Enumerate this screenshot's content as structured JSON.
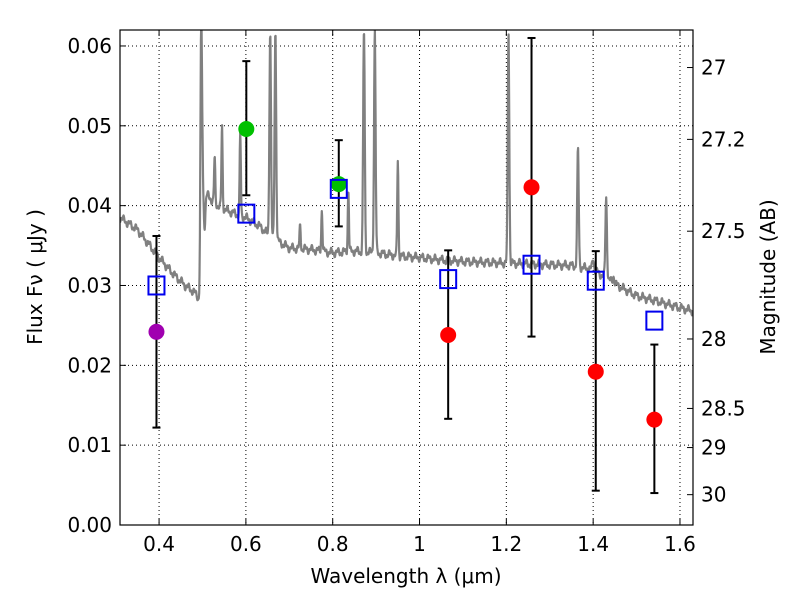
{
  "chart_data": {
    "type": "scatter",
    "xlabel": "Wavelength  λ (μm)",
    "ylabel": "Flux  Fν  ( μJy )",
    "y2label": "Magnitude (AB)",
    "xlim": [
      0.31,
      1.63
    ],
    "ylim": [
      0.0,
      0.062
    ],
    "grid": true,
    "x_ticks": [
      0.4,
      0.6,
      0.8,
      1.0,
      1.2,
      1.4,
      1.6
    ],
    "x_tick_labels": [
      "0.4",
      "0.6",
      "0.8",
      "1",
      "1.2",
      "1.4",
      "1.6"
    ],
    "y_ticks": [
      0.0,
      0.01,
      0.02,
      0.03,
      0.04,
      0.05,
      0.06
    ],
    "y_tick_labels": [
      "0.00",
      "0.01",
      "0.02",
      "0.03",
      "0.04",
      "0.05",
      "0.06"
    ],
    "y2_ticks": [
      {
        "label": "27",
        "flux": 0.0573
      },
      {
        "label": "27.2",
        "flux": 0.0483
      },
      {
        "label": "27.5",
        "flux": 0.0368
      },
      {
        "label": "28",
        "flux": 0.0233
      },
      {
        "label": "28.5",
        "flux": 0.0146
      },
      {
        "label": "29",
        "flux": 0.0097
      },
      {
        "label": "30",
        "flux": 0.0038
      }
    ],
    "colors": {
      "model": "#808080",
      "violet": "#a000b0",
      "green": "#00c000",
      "red": "#ff0000",
      "model_box": "#0000ee",
      "error_bar": "#000000"
    },
    "measurements": [
      {
        "x": 0.394,
        "y": 0.0242,
        "yerr_low": 0.0122,
        "yerr_high": 0.0362,
        "color": "violet"
      },
      {
        "x": 0.601,
        "y": 0.0496,
        "yerr_low": 0.0413,
        "yerr_high": 0.0581,
        "color": "green"
      },
      {
        "x": 0.814,
        "y": 0.0427,
        "yerr_low": 0.0374,
        "yerr_high": 0.0482,
        "color": "green"
      },
      {
        "x": 1.066,
        "y": 0.0238,
        "yerr_low": 0.0133,
        "yerr_high": 0.0344,
        "color": "red"
      },
      {
        "x": 1.258,
        "y": 0.0423,
        "yerr_low": 0.0236,
        "yerr_high": 0.061,
        "color": "red"
      },
      {
        "x": 1.406,
        "y": 0.0192,
        "yerr_low": 0.0043,
        "yerr_high": 0.0343,
        "color": "red"
      },
      {
        "x": 1.541,
        "y": 0.0132,
        "yerr_low": 0.004,
        "yerr_high": 0.0226,
        "color": "red"
      }
    ],
    "model_photometry": [
      {
        "x": 0.394,
        "y": 0.03
      },
      {
        "x": 0.601,
        "y": 0.039
      },
      {
        "x": 0.814,
        "y": 0.0421
      },
      {
        "x": 1.066,
        "y": 0.0308
      },
      {
        "x": 1.258,
        "y": 0.0326
      },
      {
        "x": 1.406,
        "y": 0.0306
      },
      {
        "x": 1.541,
        "y": 0.0256
      }
    ],
    "model_spectrum": {
      "continuum": [
        [
          0.31,
          0.0385
        ],
        [
          0.35,
          0.037
        ],
        [
          0.4,
          0.0335
        ],
        [
          0.43,
          0.0316
        ],
        [
          0.46,
          0.03
        ],
        [
          0.48,
          0.0292
        ],
        [
          0.488,
          0.0287
        ],
        [
          0.493,
          0.028
        ],
        [
          0.497,
          0.0283
        ],
        [
          0.5,
          0.042
        ],
        [
          0.53,
          0.0402
        ],
        [
          0.56,
          0.0393
        ],
        [
          0.6,
          0.0385
        ],
        [
          0.63,
          0.0375
        ],
        [
          0.66,
          0.036
        ],
        [
          0.7,
          0.0347
        ],
        [
          0.75,
          0.0345
        ],
        [
          0.8,
          0.0341
        ],
        [
          0.85,
          0.0343
        ],
        [
          0.9,
          0.0341
        ],
        [
          0.95,
          0.0337
        ],
        [
          1.0,
          0.0335
        ],
        [
          1.05,
          0.0332
        ],
        [
          1.1,
          0.033
        ],
        [
          1.15,
          0.0329
        ],
        [
          1.2,
          0.0328
        ],
        [
          1.25,
          0.0327
        ],
        [
          1.3,
          0.0326
        ],
        [
          1.35,
          0.0325
        ],
        [
          1.4,
          0.032
        ],
        [
          1.45,
          0.0302
        ],
        [
          1.5,
          0.0287
        ],
        [
          1.55,
          0.028
        ],
        [
          1.6,
          0.0272
        ],
        [
          1.63,
          0.0268
        ]
      ],
      "lines": [
        {
          "x": 0.497,
          "peak": 0.062,
          "width": 0.004
        },
        {
          "x": 0.505,
          "peak": 0.0375,
          "width": 0.004
        },
        {
          "x": 0.528,
          "peak": 0.046,
          "width": 0.003
        },
        {
          "x": 0.545,
          "peak": 0.05,
          "width": 0.003
        },
        {
          "x": 0.587,
          "peak": 0.049,
          "width": 0.003
        },
        {
          "x": 0.656,
          "peak": 0.062,
          "width": 0.004
        },
        {
          "x": 0.668,
          "peak": 0.062,
          "width": 0.004
        },
        {
          "x": 0.725,
          "peak": 0.0375,
          "width": 0.003
        },
        {
          "x": 0.775,
          "peak": 0.0395,
          "width": 0.003
        },
        {
          "x": 0.836,
          "peak": 0.042,
          "width": 0.003
        },
        {
          "x": 0.872,
          "peak": 0.062,
          "width": 0.004
        },
        {
          "x": 0.897,
          "peak": 0.062,
          "width": 0.004
        },
        {
          "x": 0.95,
          "peak": 0.0458,
          "width": 0.003
        },
        {
          "x": 1.205,
          "peak": 0.062,
          "width": 0.004
        },
        {
          "x": 1.365,
          "peak": 0.047,
          "width": 0.004
        },
        {
          "x": 1.4,
          "peak": 0.0335,
          "width": 0.004
        },
        {
          "x": 1.43,
          "peak": 0.041,
          "width": 0.004
        },
        {
          "x": 1.447,
          "peak": 0.0312,
          "width": 0.004
        }
      ]
    }
  }
}
